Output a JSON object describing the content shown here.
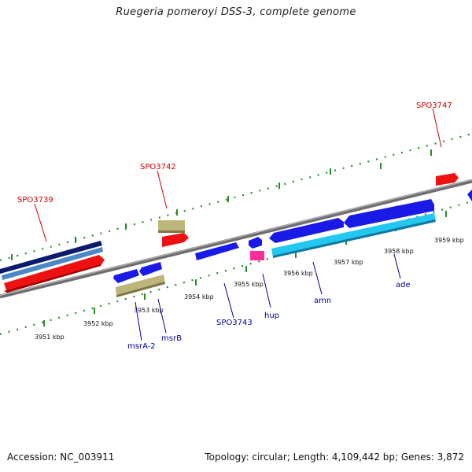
{
  "title": "Ruegeria pomeroyi DSS-3, complete genome",
  "footer": {
    "accession": "Accession: NC_003911",
    "summary": "Topology: circular; Length: 4,109,442 bp; Genes: 3,872"
  },
  "colors": {
    "backbone": "#8c8c8c",
    "ruler": "#2a8a2a",
    "upper_label": "#cc0000",
    "lower_label": "#000099",
    "red_gene": "#ee1111",
    "blue_gene": "#1a1ae6",
    "khaki_gene": "#bdb67a",
    "cyan_gene": "#22c8f0",
    "navy_gene": "#0b1a6e",
    "pink_gene": "#ff2d9a"
  },
  "scale": {
    "ticks": [
      "3951 kbp",
      "3952 kbp",
      "3953 kbp",
      "3954 kbp",
      "3955 kbp",
      "3956 kbp",
      "3957 kbp",
      "3958 kbp",
      "3959 kbp"
    ]
  },
  "upper_labels": [
    "SPO3739",
    "SPO3742",
    "SPO3747"
  ],
  "lower_labels": [
    "msrA-2",
    "msrB",
    "SPO3743",
    "hup",
    "amn",
    "ade"
  ]
}
